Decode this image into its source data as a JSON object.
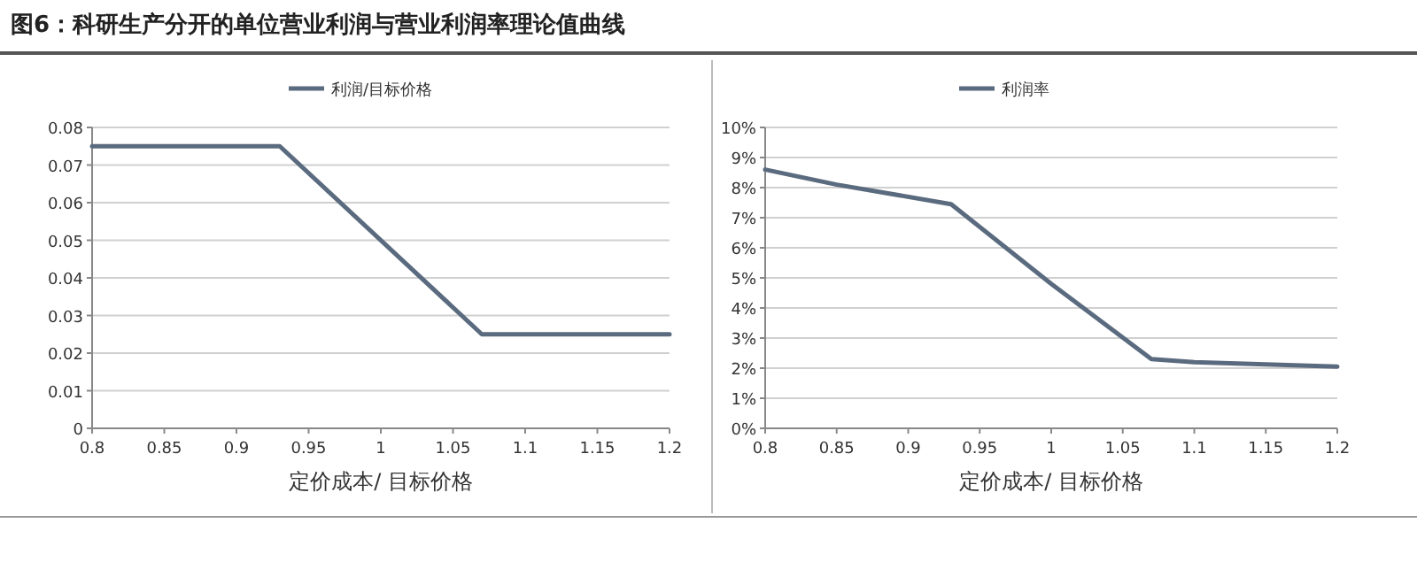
{
  "chart_data": [
    {
      "type": "line",
      "title": "图6：科研生产分开的单位营业利润与营业利润率理论值曲线",
      "xlabel": "定价成本/ 目标价格",
      "x": [
        0.8,
        0.93,
        1.07,
        1.2
      ],
      "series": [
        {
          "name": "利润/目标价格",
          "color": "#5b6b7f",
          "values": [
            0.075,
            0.075,
            0.025,
            0.025
          ]
        }
      ],
      "xlim": [
        0.8,
        1.2
      ],
      "xticks": [
        0.8,
        0.85,
        0.9,
        0.95,
        1,
        1.05,
        1.1,
        1.15,
        1.2
      ],
      "ylim": [
        0,
        0.08
      ],
      "yticks": [
        0,
        0.01,
        0.02,
        0.03,
        0.04,
        0.05,
        0.06,
        0.07,
        0.08
      ],
      "grid": "y",
      "legend": "top"
    },
    {
      "type": "line",
      "xlabel": "定价成本/ 目标价格",
      "x": [
        0.8,
        0.85,
        0.93,
        1.0,
        1.07,
        1.1,
        1.2
      ],
      "series": [
        {
          "name": "利润率",
          "color": "#5b6b7f",
          "values": [
            8.6,
            8.1,
            7.45,
            4.8,
            2.3,
            2.2,
            2.05
          ]
        }
      ],
      "xlim": [
        0.8,
        1.2
      ],
      "xticks": [
        0.8,
        0.85,
        0.9,
        0.95,
        1,
        1.05,
        1.1,
        1.15,
        1.2
      ],
      "ylim": [
        0,
        10
      ],
      "yticks": [
        {
          "value": 0,
          "label": "0%"
        },
        {
          "value": 1,
          "label": "1%"
        },
        {
          "value": 2,
          "label": "2%"
        },
        {
          "value": 3,
          "label": "3%"
        },
        {
          "value": 4,
          "label": "4%"
        },
        {
          "value": 5,
          "label": "5%"
        },
        {
          "value": 6,
          "label": "6%"
        },
        {
          "value": 7,
          "label": "7%"
        },
        {
          "value": 8,
          "label": "8%"
        },
        {
          "value": 9,
          "label": "9%"
        },
        {
          "value": 10,
          "label": "10%"
        }
      ],
      "grid": "y",
      "legend": "top"
    }
  ]
}
